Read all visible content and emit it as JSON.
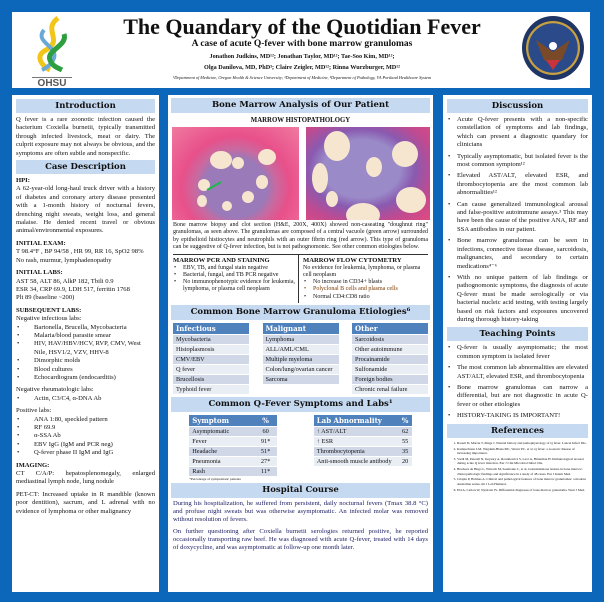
{
  "header": {
    "title": "The Quandary of the Quotidian Fever",
    "subtitle": "A case of acute Q-fever with bone marrow granulomas",
    "authors_line1": "Jonathon Judkins, MD¹²; Jonathan Taylor, MD¹²; Tae-Soo Kim, MD¹²;",
    "authors_line2": "Olga Danilova, MD, PhD³; Claire Zeigler, MD¹²; Rinna Wurzburger, MD¹²",
    "affiliations": "¹Department of Medicine, Oregon Health & Science University; ²Department of Medicine, ³Department of Pathology, VA Portland Healthcare System",
    "left_logo": "OHSU",
    "right_logo": "Department of Veterans Affairs seal"
  },
  "colors": {
    "background": "#0c66b9",
    "section_header": "#c5d9f1",
    "table_header": "#4f81bd"
  },
  "intro": {
    "title": "Introduction",
    "text": "Q fever is a rare zoonotic infection caused the bacterium Coxiella burnetii, typically transmitted through infected livestock, meat or dairy. The culprit exposure may not always be obvious, and the symptoms are often subtle and nonspecific."
  },
  "case": {
    "title": "Case Description",
    "hpi_label": "HPI:",
    "hpi": "A 62-year-old long-haul truck driver with a history of diabetes and coronary artery disease presented with a 1-month history of nocturnal fevers, drenching night sweats, weight loss, and general malaise. He denied recent travel or obvious animal/environmental exposures.",
    "exam_label": "INITIAL EXAM:",
    "exam1": "T 98.4°F , BP 94/58 , HR 99, RR 16, SpO2 98%",
    "exam2": "No rash, murmur, lymphadenopathy",
    "labs_label": "INITIAL LABS:",
    "labs1": "AST 58, ALT 86, AlkP 182, Tbili 0.9",
    "labs2": "ESR 34, CRP 69.9, LDH 517, ferritin 1768",
    "labs3": "Plt 89 (baseline ~200)",
    "sub_label": "SUBSEQUENT LABS:",
    "neg_inf": "Negative infectious labs:",
    "neg_inf_items": [
      "Bartonella, Brucella, Mycobacteria",
      "Malaria/blood parasite smear",
      "HIV, HAV/HBV/HCV, RVP, CMV, West Nile, HSV1/2, VZV, HHV-8",
      "Dimorphic molds",
      "Blood cultures",
      "Echocardiogram (endocarditis)"
    ],
    "neg_rheum": "Negative rheumatologic labs:",
    "neg_rheum_items": [
      "Actin, C3/C4, α-DNA Ab"
    ],
    "pos": "Positive labs:",
    "pos_items": [
      "ANA 1:80, speckled pattern",
      "RF 69.9",
      "α-SSA Ab",
      "EBV IgG (IgM and PCR neg)",
      "Q-fever phase II IgM and IgG"
    ],
    "imaging_label": "IMAGING:",
    "ct": "CT C/A/P: hepatosplenomegaly, enlarged mediastinal lymph node, lung nodule",
    "pet": "PET-CT: Increased uptake in R mandible (known poor dentition), sacrum, and L adrenal with no evidence of lymphoma or other malignancy"
  },
  "marrow": {
    "title": "Bone Marrow Analysis of Our Patient",
    "histo_title": "MARROW HISTOPATHOLOGY",
    "caption": "Bone marrow biopsy and clot section (H&E, 200X, 400X) showed non-caseating \"doughnut ring\" granulomas, as seen above. The granulomas are composed of a central vacuole (green arrow) surrounded by epithelioid histiocytes and neutrophils with an outer fibrin ring (red arrow). This type of granuloma can be suggestive of Q-fever infection, but is not pathognomonic. See other common etiologies below.",
    "pcr_title": "MARROW PCR AND STAINING",
    "pcr_items": [
      "EBV, TB, and fungal stain negative",
      "Bacterial, fungal, and TB PCR negative",
      "No immunophenotypic evidence for leukemia, lymphoma, or plasma cell neoplasm"
    ],
    "flow_title": "MARROW FLOW CYTOMETRY",
    "flow_text": "No evidence for leukemia, lymphoma, or plasma cell neoplasm",
    "flow_items": [
      "No increase in CD34+ blasts",
      "Polyclonal B cells and plasma cells",
      "Normal CD4:CD8 ratio"
    ]
  },
  "etiologies": {
    "title": "Common Bone Marrow Granuloma Etiologies⁶",
    "columns": [
      {
        "header": "Infectious",
        "items": [
          "Mycobacteria",
          "Histoplasmosis",
          "CMV/EBV",
          "Q fever",
          "Brucellosis",
          "Typhoid fever"
        ]
      },
      {
        "header": "Malignant",
        "items": [
          "Lymphoma",
          "ALL/AML/CML",
          "Multiple myeloma",
          "Colon/lung/ovarian cancer",
          "Sarcoma"
        ]
      },
      {
        "header": "Other",
        "items": [
          "Sarcoidosis",
          "Other autoimmune",
          "Procainamide",
          "Sulfonamide",
          "Foreign bodies",
          "Chronic renal failure"
        ]
      }
    ]
  },
  "symptoms": {
    "title": "Common Q-Fever Symptoms and Labs¹",
    "sym_headers": [
      "Symptom",
      "%"
    ],
    "sym_rows": [
      [
        "Asymptomatic",
        "60"
      ],
      [
        "Fever",
        "91*"
      ],
      [
        "Headache",
        "51*"
      ],
      [
        "Pneumonia",
        "27*"
      ],
      [
        "Rash",
        "11*"
      ]
    ],
    "footnote": "*Percentage of symptomatic patients",
    "lab_headers": [
      "Lab Abnormality",
      "%"
    ],
    "lab_rows": [
      [
        "↑ AST/ALT",
        "62"
      ],
      [
        "↑ ESR",
        "55"
      ],
      [
        "Thrombocytopenia",
        "35"
      ],
      [
        "Anti-smooth muscle antibody",
        "20"
      ]
    ]
  },
  "hospital": {
    "title": "Hospital Course",
    "p1": "During his hospitalization, he suffered from persistent, daily nocturnal fevers (Tmax 38.8 °C) and profuse night sweats but was otherwise asymptomatic. An infected molar was removed without resolution of fevers.",
    "p2": "On further questioning after Coxiella burnetii serologies returned positive, he reported occasionally transporting raw beef. He was diagnosed with acute Q-fever, treated with 14 days of doxycycline, and was asymptomatic at follow-up one month later."
  },
  "discussion": {
    "title": "Discussion",
    "items": [
      "Acute Q-fever presents with a non-specific constellation of symptoms and lab findings, which can present a diagnostic quandary for clinicians",
      "Typically asymptomatic, but isolated fever is the most common symptom¹²",
      "Elevated AST/ALT, elevated ESR, and thrombocytopenia are the most common lab abnormalities¹²",
      "Can cause generalized immunological arousal and false-positive autoimmune assays.³ This may have been the cause of the positive ANA, RF and SSA antibodies in our patient.",
      "Bone marrow granulomas can be seen in infections, connective tissue disease, sarcoidosis, malignancies, and secondary to certain medications⁴⁻⁶",
      "With no unique pattern of lab findings or pathognomonic symptoms, the diagnosis of acute Q-fever must be made serologically or via bacterial nucleic acid testing, with testing largely based on risk factors and exposures uncovered during thorough history-taking"
    ]
  },
  "teaching": {
    "title": "Teaching Points",
    "items": [
      "Q-fever is usually asymptomatic; the most common symptom is isolated fever",
      "The most common lab abnormalities are elevated AST/ALT, elevated ESR, and thrombocytopenia",
      "Bone marrow granulomas can narrow a differential, but are not diagnostic in acute Q-fever or other etiologies",
      "HISTORY-TAKING IS IMPORTANT!"
    ]
  },
  "references": {
    "title": "References",
    "items": [
      "Raoult D, Marrie T, Mege J. Natural history and pathophysiology of Q fever. Lancet Infect Dis.",
      "Kampschreur LM, Wegdam-Blans MC, Wever PC, et al. Q fever: a zoonotic disease of increasing importance.",
      "Vardi M, Petersil N, Keysary A, Rzotkiewicz S, Laor A, Bitterman H. Immunological arousal during acute Q fever infection. Eur J Clin Microbiol Infect Dis.",
      "Brackers de Hugo L, Wirrach M, Seemoule C, et al. Granulomatous lesions in bone marrow: clinicopathologic findings and significance in a study of 48 cases. Eur J Intern Med.",
      "Crispin P, Holmes A. Clinical and pathological features of bone marrow granulomas: a modern Australian series. Int J Lab Hematol.",
      "Eid A, Carion W, Nystrom JS. Differential diagnoses of bone marrow granuloma. West J Med."
    ]
  }
}
